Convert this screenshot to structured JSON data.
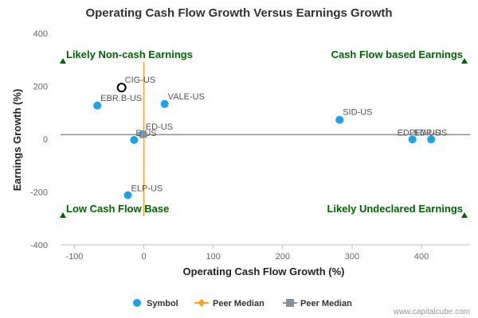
{
  "chart_data": {
    "type": "scatter",
    "title": "Operating Cash Flow Growth Versus Earnings Growth",
    "xlabel": "Operating Cash Flow Growth (%)",
    "ylabel": "Earnings Growth (%)",
    "xlim": [
      -120,
      470
    ],
    "ylim": [
      -400,
      400
    ],
    "x_ticks": [
      -100,
      0,
      100,
      200,
      300,
      400
    ],
    "y_ticks": [
      -400,
      -200,
      0,
      200,
      400
    ],
    "grid": false,
    "points": [
      {
        "label": "CIG-US",
        "x": -32,
        "y": 195,
        "highlight": true
      },
      {
        "label": "EBR.B-US",
        "x": -67,
        "y": 127
      },
      {
        "label": "VALE-US",
        "x": 30,
        "y": 133
      },
      {
        "label": "ED-US",
        "x": -2,
        "y": 18
      },
      {
        "label": "E-US",
        "x": -14,
        "y": -3
      },
      {
        "label": "ELP-US",
        "x": -23,
        "y": -212
      },
      {
        "label": "SID-US",
        "x": 282,
        "y": 73
      },
      {
        "label": "EDP-US",
        "x": 387,
        "y": -1
      },
      {
        "label": "EDPFY-US",
        "x": 414,
        "y": -1
      }
    ],
    "peer_median_x": 0,
    "peer_median_y": 17,
    "quadrant_labels": {
      "top_left": "Likely Non-cash Earnings",
      "top_right": "Cash Flow based Earnings",
      "bottom_left": "Low Cash Flow Base",
      "bottom_right": "Likely Undeclared Earnings"
    },
    "legend": [
      {
        "name": "Symbol",
        "color": "#1aa3ea",
        "marker": "circle"
      },
      {
        "name": "Peer Median",
        "color": "#f5a623",
        "marker": "diamond"
      },
      {
        "name": "Peer Median",
        "color": "#8a9098",
        "marker": "square"
      }
    ],
    "legend_position": "bottom"
  },
  "credit": "www.capitalcube.com",
  "colors": {
    "point": "#1aa3ea",
    "median_x_line": "#f5a623",
    "median_y_line": "#8a9098",
    "quadrant_text": "#006400",
    "axis": "#c0c0c0"
  }
}
